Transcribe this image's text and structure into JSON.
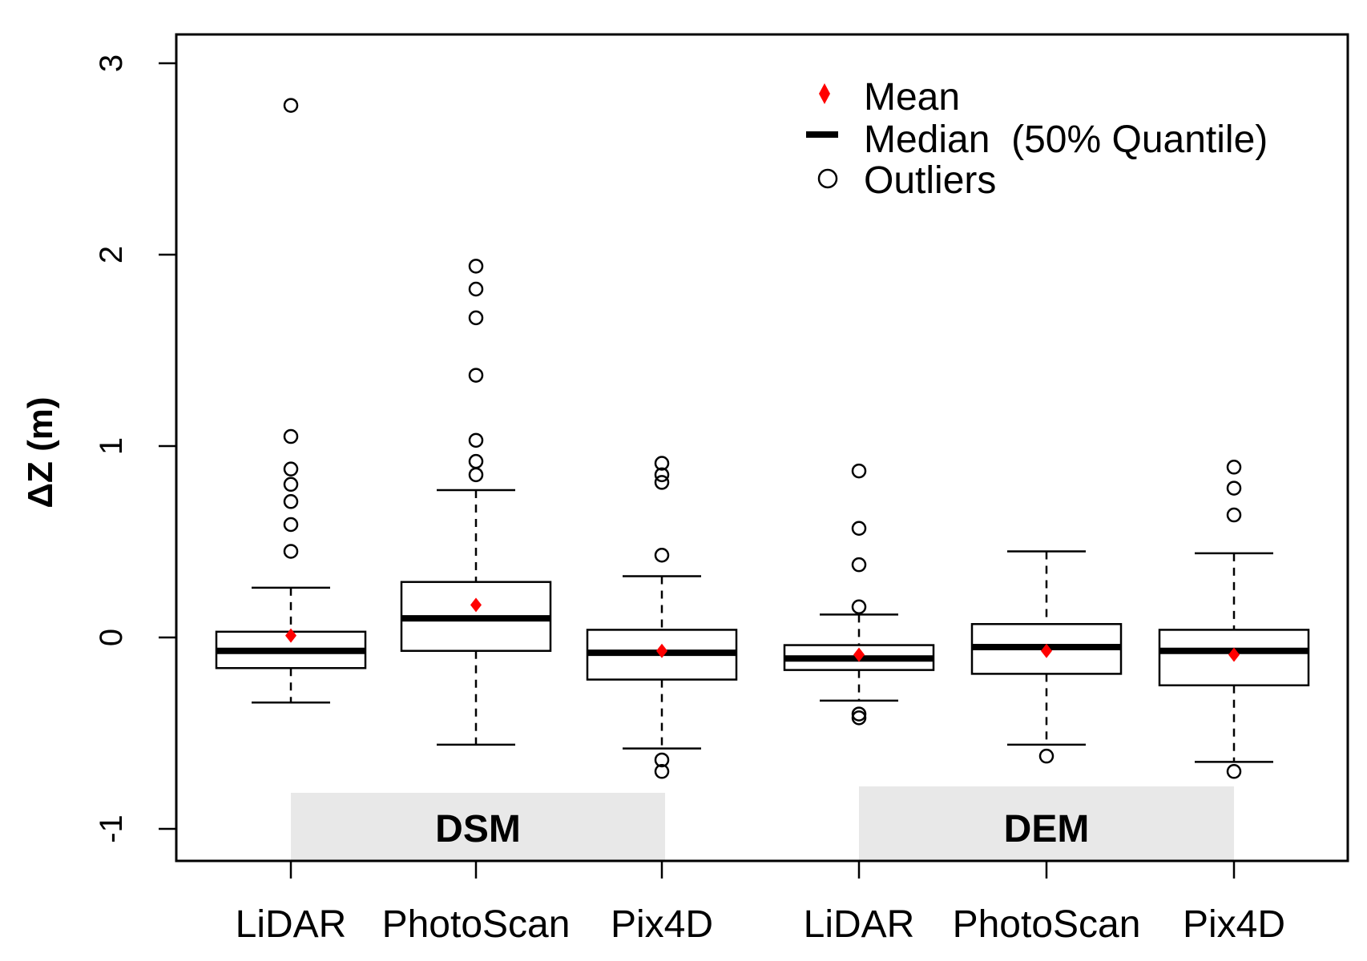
{
  "chart_data": {
    "type": "box",
    "ylabel": "ΔZ (m)",
    "ylim": [
      -1.15,
      3.15
    ],
    "yticks": [
      "-1",
      "0",
      "1",
      "2",
      "3"
    ],
    "y_tick_values": [
      -1,
      0,
      1,
      2,
      3
    ],
    "categories": [
      "LiDAR",
      "PhotoScan",
      "Pix4D",
      "LiDAR",
      "PhotoScan",
      "Pix4D"
    ],
    "group_labels": [
      "DSM",
      "DEM"
    ],
    "groups": [
      {
        "label": "DSM",
        "categories": [
          0,
          1,
          2
        ]
      },
      {
        "label": "DEM",
        "categories": [
          3,
          4,
          5
        ]
      }
    ],
    "legend": {
      "position": "top-right",
      "entries": [
        {
          "label": "Mean",
          "marker": "red-diamond"
        },
        {
          "label": "Median  (50% Quantile)",
          "marker": "thick-black-line"
        },
        {
          "label": "Outliers",
          "marker": "open-circle"
        }
      ]
    },
    "series": [
      {
        "category": "LiDAR",
        "group": "DSM",
        "whisker_low": -0.34,
        "q1": -0.16,
        "median": -0.07,
        "q3": 0.03,
        "whisker_high": 0.26,
        "mean": 0.01,
        "outliers": [
          2.78,
          1.05,
          0.88,
          0.8,
          0.71,
          0.59,
          0.45
        ]
      },
      {
        "category": "PhotoScan",
        "group": "DSM",
        "whisker_low": -0.56,
        "q1": -0.07,
        "median": 0.1,
        "q3": 0.29,
        "whisker_high": 0.77,
        "mean": 0.17,
        "outliers": [
          1.94,
          1.82,
          1.67,
          1.37,
          1.03,
          0.92,
          0.85
        ]
      },
      {
        "category": "Pix4D",
        "group": "DSM",
        "whisker_low": -0.58,
        "q1": -0.22,
        "median": -0.08,
        "q3": 0.04,
        "whisker_high": 0.32,
        "mean": -0.07,
        "outliers": [
          0.91,
          0.85,
          0.81,
          0.43,
          -0.64,
          -0.7
        ]
      },
      {
        "category": "LiDAR",
        "group": "DEM",
        "whisker_low": -0.33,
        "q1": -0.17,
        "median": -0.11,
        "q3": -0.04,
        "whisker_high": 0.12,
        "mean": -0.09,
        "outliers": [
          0.87,
          0.57,
          0.38,
          0.16,
          -0.4,
          -0.42
        ]
      },
      {
        "category": "PhotoScan",
        "group": "DEM",
        "whisker_low": -0.56,
        "q1": -0.19,
        "median": -0.05,
        "q3": 0.07,
        "whisker_high": 0.45,
        "mean": -0.07,
        "outliers": [
          -0.62
        ]
      },
      {
        "category": "Pix4D",
        "group": "DEM",
        "whisker_low": -0.65,
        "q1": -0.25,
        "median": -0.07,
        "q3": 0.04,
        "whisker_high": 0.44,
        "mean": -0.09,
        "outliers": [
          0.89,
          0.78,
          0.64,
          -0.7
        ]
      }
    ],
    "colors": {
      "mean": "#ff0000",
      "group_band": "#e8e8e8",
      "box": "#000000"
    },
    "grid": false
  }
}
